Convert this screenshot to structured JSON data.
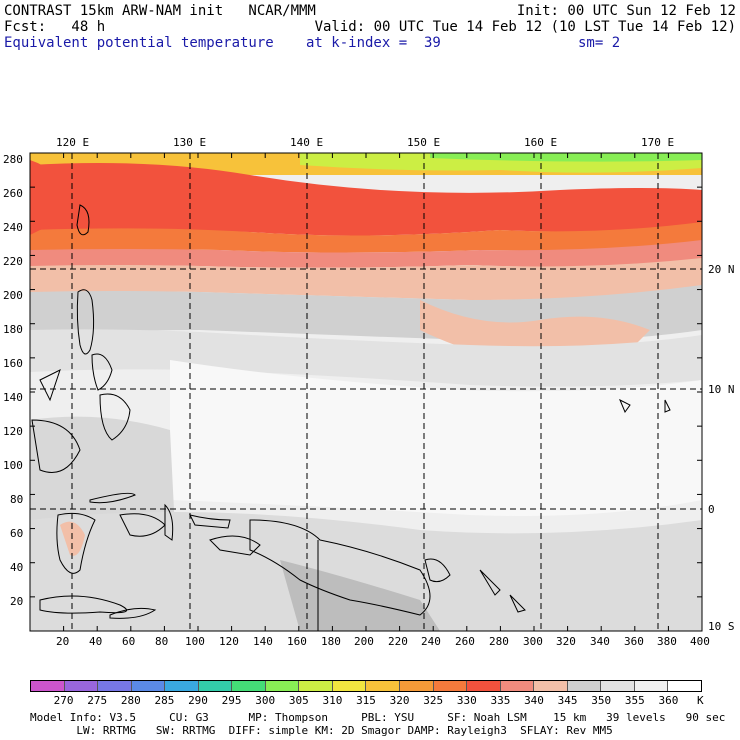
{
  "header": {
    "line1_left": "CONTRAST 15km ARW-NAM init   NCAR/MMM",
    "line1_right": "Init: 00 UTC Sun 12 Feb 12",
    "line2_left": "Fcst:   48 h",
    "line2_right": "Valid: 00 UTC Tue 14 Feb 12 (10 LST Tue 14 Feb 12)",
    "field": "Equivalent potential temperature",
    "level": "at k-index =  39",
    "smooth": "sm= 2"
  },
  "map": {
    "lon_labels": [
      "120 E",
      "130 E",
      "140 E",
      "150 E",
      "160 E",
      "170 E"
    ],
    "lat_labels": [
      "20 N",
      "10 N",
      "0",
      "10 S"
    ],
    "y_grid_labels": [
      "280",
      "260",
      "240",
      "220",
      "200",
      "180",
      "160",
      "140",
      "120",
      "100",
      "80",
      "60",
      "40",
      "20"
    ],
    "x_grid_labels": [
      "20",
      "40",
      "60",
      "80",
      "100",
      "120",
      "140",
      "160",
      "180",
      "200",
      "220",
      "240",
      "260",
      "280",
      "300",
      "320",
      "340",
      "360",
      "380",
      "400"
    ],
    "colors": {
      "land_outline": "#000000",
      "grid_line": "#000000"
    }
  },
  "colorbar": {
    "unit": "K",
    "labels": [
      "270",
      "275",
      "280",
      "285",
      "290",
      "295",
      "300",
      "305",
      "310",
      "315",
      "320",
      "325",
      "330",
      "335",
      "340",
      "345",
      "350",
      "355",
      "360"
    ],
    "colors": [
      "#cc55cc",
      "#9966dd",
      "#7777e6",
      "#5b8ae6",
      "#3aa8e0",
      "#33ccaa",
      "#44dd77",
      "#88ee55",
      "#ccee44",
      "#f2e640",
      "#f7c23a",
      "#f59a38",
      "#f47a3c",
      "#f2523d",
      "#f08b7e",
      "#f2bfa8",
      "#d0d0d0",
      "#e2e2e2",
      "#f0f0f0",
      "#ffffff"
    ]
  },
  "footer": {
    "line1": "Model Info: V3.5     CU: G3      MP: Thompson     PBL: YSU     SF: Noah LSM    15 km   39 levels   90 sec",
    "line2": "       LW: RRTMG   SW: RRTMG  DIFF: simple KM: 2D Smagor DAMP: Rayleigh3  SFLAY: Rev MM5"
  }
}
